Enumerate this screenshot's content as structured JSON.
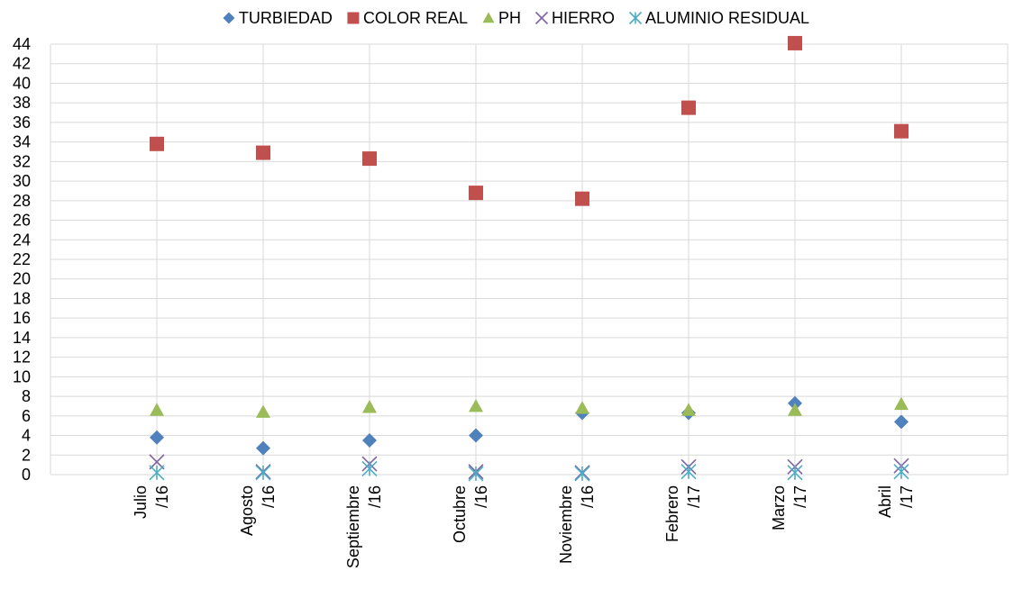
{
  "chart_data": {
    "type": "scatter",
    "categories": [
      [
        "Julio",
        "/16"
      ],
      [
        "Agosto",
        "/16"
      ],
      [
        "Septiembre",
        "/16"
      ],
      [
        "Octubre",
        "/16"
      ],
      [
        "Noviembre",
        "/16"
      ],
      [
        "Febrero",
        "/17"
      ],
      [
        "Marzo",
        "/17"
      ],
      [
        "Abril",
        "/17"
      ]
    ],
    "ylim": [
      0,
      44
    ],
    "y_ticks": [
      0,
      2,
      4,
      6,
      8,
      10,
      12,
      14,
      16,
      18,
      20,
      22,
      24,
      26,
      28,
      30,
      32,
      34,
      36,
      38,
      40,
      42,
      44
    ],
    "grid": true,
    "legend_position": "top",
    "series": [
      {
        "name": "TURBIEDAD",
        "marker": "diamond",
        "color": "#4F81BD",
        "values": [
          3.8,
          2.7,
          3.5,
          4.0,
          6.3,
          6.3,
          7.3,
          5.4
        ]
      },
      {
        "name": "COLOR REAL",
        "marker": "square",
        "color": "#C0504D",
        "values": [
          33.8,
          32.9,
          32.3,
          28.8,
          28.2,
          37.5,
          44.1,
          35.1
        ]
      },
      {
        "name": "PH",
        "marker": "triangle",
        "color": "#9BBB59",
        "values": [
          6.6,
          6.4,
          6.9,
          7.0,
          6.8,
          6.6,
          6.6,
          7.2
        ]
      },
      {
        "name": "HIERRO",
        "marker": "x",
        "color": "#8064A2",
        "values": [
          1.3,
          0.3,
          1.1,
          0.3,
          0.2,
          0.8,
          0.8,
          0.9
        ]
      },
      {
        "name": "ALUMINIO RESIDUAL",
        "marker": "asterisk",
        "color": "#4BACC6",
        "values": [
          0.2,
          0.2,
          0.6,
          0.1,
          0.1,
          0.3,
          0.2,
          0.3
        ]
      }
    ]
  }
}
